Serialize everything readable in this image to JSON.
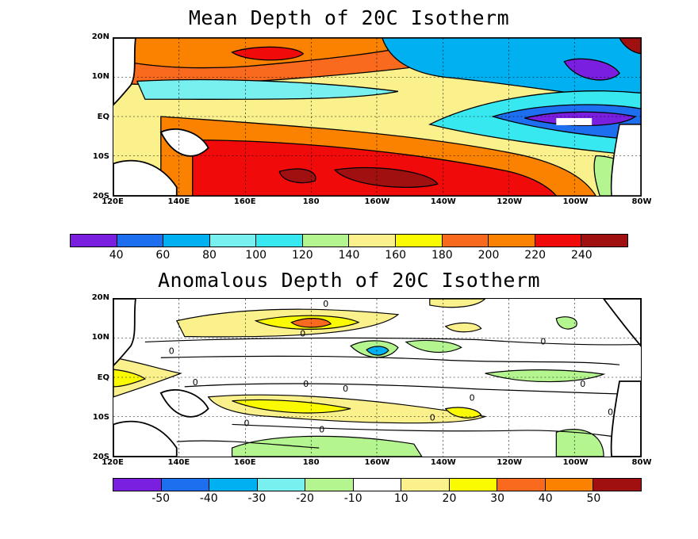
{
  "panels": [
    {
      "title": "Mean Depth of 20C Isotherm",
      "lat_labels": [
        "20N",
        "10N",
        "EQ",
        "10S",
        "20S"
      ],
      "lon_labels": [
        "120E",
        "140E",
        "160E",
        "180",
        "160W",
        "140W",
        "120W",
        "100W",
        "80W"
      ],
      "colorbar": {
        "colors": [
          "#7a1ee0",
          "#1e6ef0",
          "#00b0f0",
          "#78f0f0",
          "#38e8f0",
          "#b4f590",
          "#faf08c",
          "#fafa00",
          "#fa6a1e",
          "#fa8200",
          "#f00a0a",
          "#a01010"
        ],
        "labels": [
          "40",
          "60",
          "80",
          "100",
          "120",
          "140",
          "160",
          "180",
          "200",
          "220",
          "240"
        ]
      }
    },
    {
      "title": "Anomalous Depth of 20C Isotherm",
      "lat_labels": [
        "20N",
        "10N",
        "EQ",
        "10S",
        "20S"
      ],
      "lon_labels": [
        "120E",
        "140E",
        "160E",
        "180",
        "160W",
        "140W",
        "120W",
        "100W",
        "80W"
      ],
      "colorbar": {
        "colors": [
          "#7a1ee0",
          "#1e6ef0",
          "#00b0f0",
          "#78f0f0",
          "#b4f590",
          "#ffffff",
          "#faf08c",
          "#fafa00",
          "#fa6a1e",
          "#fa8200",
          "#a01010"
        ],
        "labels": [
          "-50",
          "-40",
          "-30",
          "-20",
          "-10",
          "10",
          "20",
          "30",
          "40",
          "50"
        ]
      },
      "contour_labels": [
        "0",
        "0",
        "0",
        "0",
        "0",
        "0",
        "0",
        "0",
        "0",
        "0",
        "0",
        "0",
        "0"
      ]
    }
  ]
}
